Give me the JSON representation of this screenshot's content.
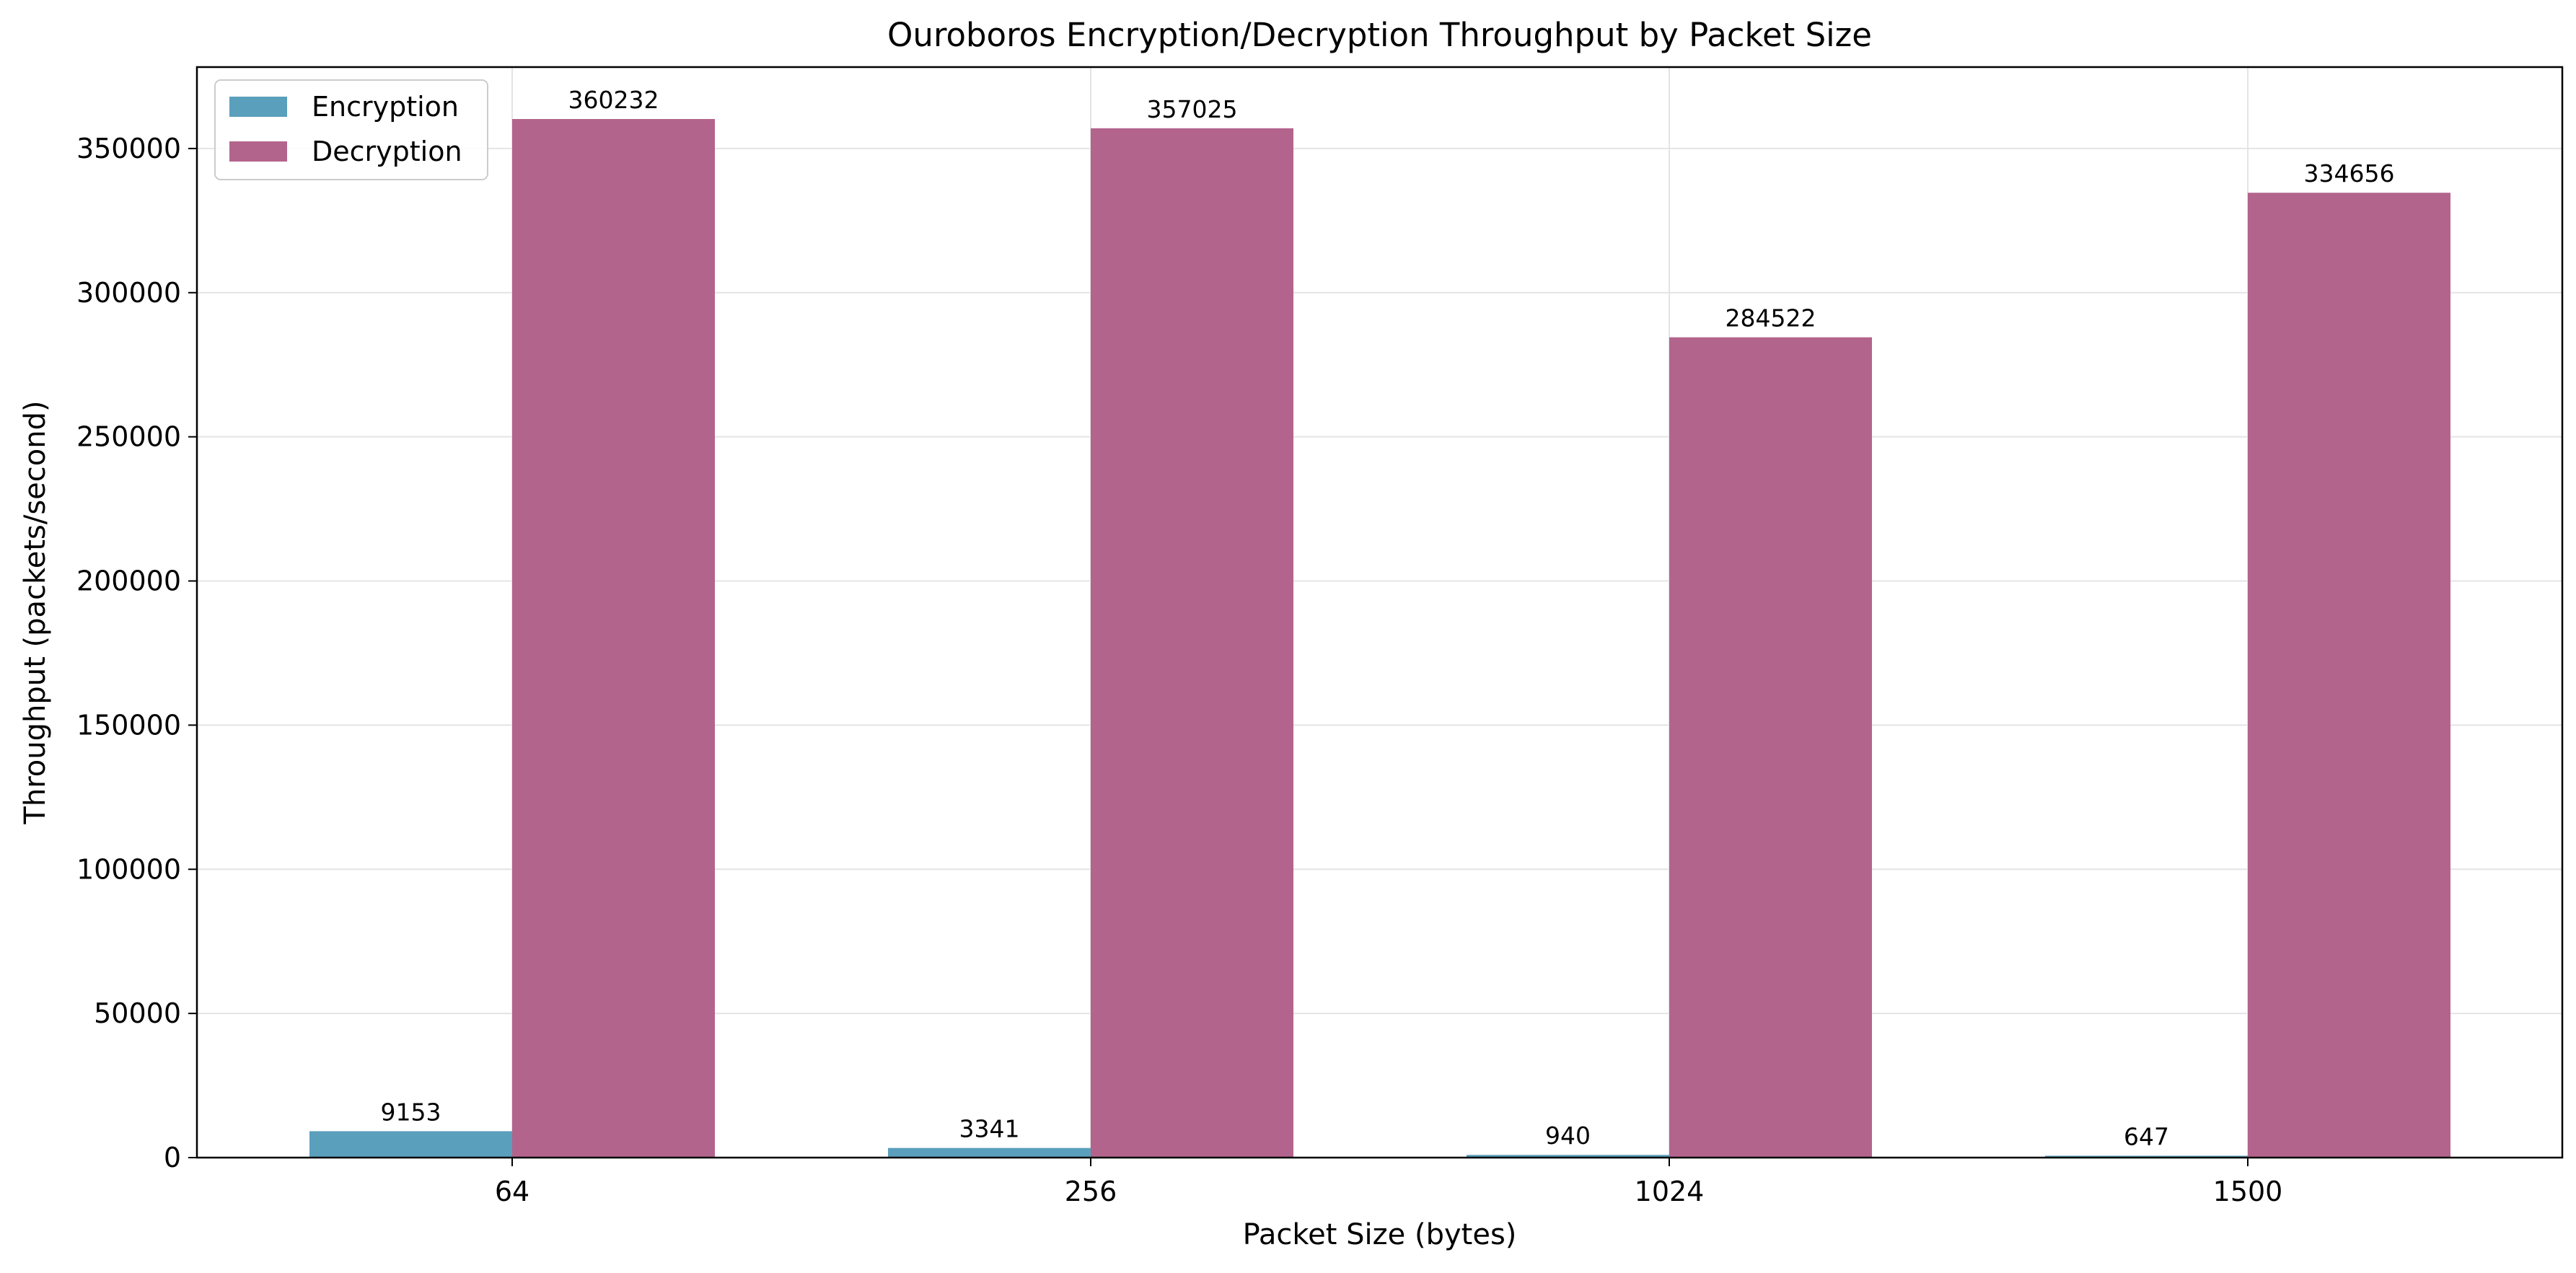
{
  "chart_data": {
    "type": "bar",
    "title": "Ouroboros Encryption/Decryption Throughput by Packet Size",
    "xlabel": "Packet Size (bytes)",
    "ylabel": "Throughput (packets/second)",
    "categories": [
      "64",
      "256",
      "1024",
      "1500"
    ],
    "series": [
      {
        "name": "Encryption",
        "color": "#5a9fbc",
        "values": [
          9153,
          3341,
          940,
          647
        ]
      },
      {
        "name": "Decryption",
        "color": "#b3648c",
        "values": [
          360232,
          357025,
          284522,
          334656
        ]
      }
    ],
    "ylim": [
      0,
      378244
    ],
    "yticks": [
      0,
      50000,
      100000,
      150000,
      200000,
      250000,
      300000,
      350000
    ],
    "grid": true,
    "legend_position": "top-left"
  }
}
